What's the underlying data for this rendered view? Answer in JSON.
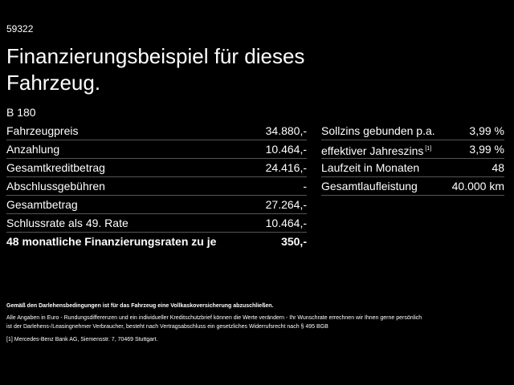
{
  "code": "59322",
  "title": {
    "lines": [
      "Finanzierungsbeispiel für dieses",
      "Fahrzeug."
    ]
  },
  "model": "B 180",
  "left_table": {
    "rows": [
      {
        "label": "Fahrzeugpreis",
        "value": "34.880,-"
      },
      {
        "label": "Anzahlung",
        "value": "10.464,-"
      },
      {
        "label": "Gesamtkreditbetrag",
        "value": "24.416,-"
      },
      {
        "label": "Abschlussgebühren",
        "value": "-"
      },
      {
        "label": "Gesamtbetrag",
        "value": "27.264,-"
      },
      {
        "label": "Schlussrate als 49. Rate",
        "value": "10.464,-"
      },
      {
        "label": "48 monatliche Finanzierungsraten zu je",
        "value": "350,-"
      }
    ]
  },
  "right_table": {
    "rows": [
      {
        "label": "Sollzins gebunden p.a.",
        "value": "3,99 %"
      },
      {
        "label": "effektiver Jahreszins",
        "note": "[1]",
        "value": "3,99 %"
      },
      {
        "label": "Laufzeit in Monaten",
        "value": "48"
      },
      {
        "label": "Gesamtlaufleistung",
        "value": "40.000 km"
      }
    ]
  },
  "footnotes": {
    "insurance": "Gemäß den Darlehensbedingungen ist für das Fahrzeug eine Vollkaskoversicherung abzuschließen.",
    "disclaimer_lines": [
      "Alle Angaben in Euro - Rundungsdifferenzen und ein individueller Kreditschutzbrief können die Werte verändern - Ihr Wunschrate errechnen wir Ihnen gerne persönlich",
      "ist der Darlehens-/Leasingnehmer Verbraucher, besteht nach Vertragsabschluss ein gesetzliches Widerrufsrecht nach § 495 BGB"
    ],
    "note_mark": "[1]",
    "note_text": "Mercedes-Benz Bank AG, Siemensstr. 7, 70469 Stuttgart."
  }
}
